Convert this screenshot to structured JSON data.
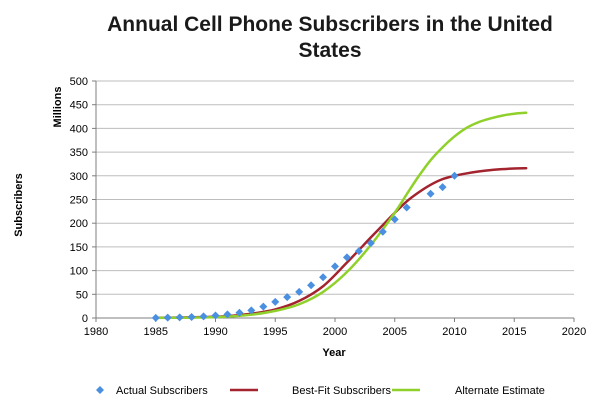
{
  "chart_data": {
    "type": "scatter",
    "title_lines": [
      "Annual Cell Phone Subscribers in the United",
      "States"
    ],
    "xlabel": "Year",
    "ylabel": "Subscribers",
    "yunit": "Millions",
    "xlim": [
      1980,
      2020
    ],
    "ylim": [
      0,
      500
    ],
    "xticks": [
      1980,
      1985,
      1990,
      1995,
      2000,
      2005,
      2010,
      2015,
      2020
    ],
    "yticks": [
      0,
      50,
      100,
      150,
      200,
      250,
      300,
      350,
      400,
      450,
      500
    ],
    "grid": "horizontal",
    "legend_position": "bottom",
    "series": [
      {
        "name": "Actual Subscribers",
        "kind": "scatter",
        "color": "#4a8fe0",
        "x": [
          1985,
          1986,
          1987,
          1988,
          1989,
          1990,
          1991,
          1992,
          1993,
          1994,
          1995,
          1996,
          1997,
          1998,
          1999,
          2000,
          2001,
          2002,
          2003,
          2004,
          2005,
          2006,
          2008,
          2009,
          2010
        ],
        "y": [
          0.3,
          0.7,
          1.2,
          2.1,
          3.5,
          5.3,
          7.6,
          11,
          16,
          24,
          34,
          44,
          55,
          69,
          86,
          109,
          128,
          141,
          158,
          182,
          208,
          233,
          262,
          276,
          300
        ]
      },
      {
        "name": "Best-Fit Subscribers",
        "kind": "line",
        "color": "#a3232e",
        "x": [
          1985,
          1987,
          1989,
          1991,
          1993,
          1995,
          1997,
          1999,
          2001,
          2003,
          2004,
          2005,
          2006,
          2007,
          2008,
          2009,
          2010,
          2011,
          2012,
          2013,
          2014,
          2015,
          2016
        ],
        "y": [
          0.5,
          1,
          2,
          4,
          9,
          18,
          36,
          67,
          117,
          170,
          196,
          222,
          246,
          265,
          281,
          293,
          300,
          305,
          309,
          312,
          314,
          315.5,
          316
        ]
      },
      {
        "name": "Alternate Estimate",
        "kind": "line",
        "color": "#8fd12a",
        "x": [
          1985,
          1987,
          1989,
          1991,
          1993,
          1995,
          1997,
          1999,
          2001,
          2003,
          2005,
          2006,
          2007,
          2008,
          2009,
          2010,
          2011,
          2012,
          2013,
          2014,
          2015,
          2016
        ],
        "y": [
          0.3,
          0.6,
          1.3,
          3,
          7,
          15,
          29,
          55,
          97,
          154,
          222,
          261,
          299,
          333,
          360,
          383,
          401,
          413,
          421,
          427,
          431,
          433
        ]
      }
    ]
  }
}
